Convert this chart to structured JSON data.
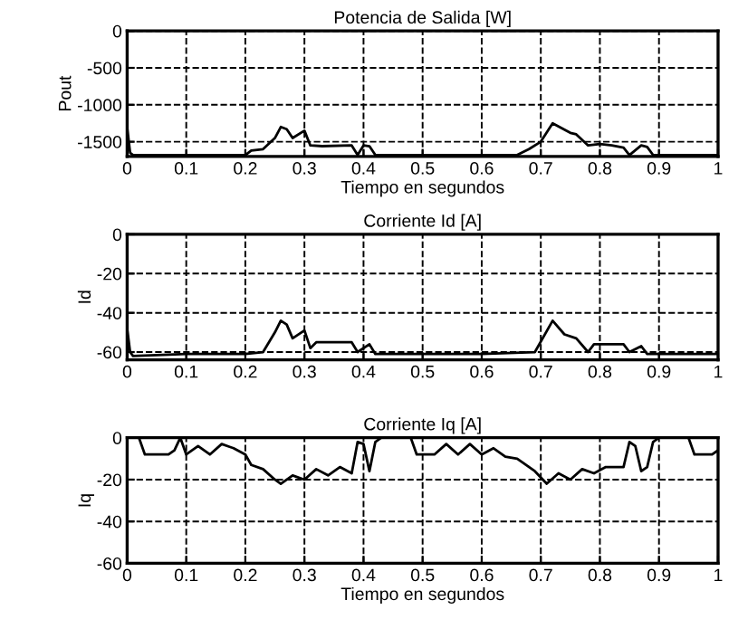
{
  "chart_data": [
    {
      "type": "line",
      "title": "Potencia de Salida [W]",
      "xlabel": "Tiempo en segundos",
      "ylabel": "Pout",
      "xlim": [
        0,
        1
      ],
      "ylim": [
        -1700,
        0
      ],
      "xticks": [
        0,
        0.1,
        0.2,
        0.3,
        0.4,
        0.5,
        0.6,
        0.7,
        0.8,
        0.9,
        1
      ],
      "yticks": [
        0,
        -500,
        -1000,
        -1500
      ],
      "grid": true,
      "line_style": "solid",
      "series": [
        {
          "color": "#000000",
          "x": [
            0,
            0.005,
            0.01,
            0.2,
            0.21,
            0.23,
            0.25,
            0.26,
            0.27,
            0.28,
            0.3,
            0.31,
            0.33,
            0.38,
            0.39,
            0.4,
            0.41,
            0.42,
            0.43,
            0.66,
            0.68,
            0.7,
            0.72,
            0.75,
            0.76,
            0.78,
            0.8,
            0.82,
            0.84,
            0.85,
            0.87,
            0.88,
            0.89,
            1
          ],
          "values": [
            -1300,
            -1650,
            -1680,
            -1680,
            -1620,
            -1600,
            -1450,
            -1300,
            -1330,
            -1450,
            -1350,
            -1550,
            -1560,
            -1550,
            -1680,
            -1550,
            -1560,
            -1680,
            -1680,
            -1680,
            -1600,
            -1500,
            -1250,
            -1380,
            -1400,
            -1550,
            -1530,
            -1550,
            -1580,
            -1680,
            -1550,
            -1570,
            -1680,
            -1680
          ]
        }
      ]
    },
    {
      "type": "line",
      "title": "Corriente Id [A]",
      "ylabel": "Id",
      "xlim": [
        0,
        1
      ],
      "ylim": [
        -64,
        0
      ],
      "xticks": [
        0,
        0.1,
        0.2,
        0.3,
        0.4,
        0.5,
        0.6,
        0.7,
        0.8,
        0.9,
        1
      ],
      "yticks": [
        0,
        -20,
        -40,
        -60
      ],
      "grid": true,
      "line_style": "solid",
      "series": [
        {
          "color": "#000000",
          "x": [
            0,
            0.005,
            0.01,
            0.1,
            0.2,
            0.23,
            0.25,
            0.26,
            0.27,
            0.28,
            0.3,
            0.31,
            0.32,
            0.38,
            0.39,
            0.41,
            0.42,
            0.5,
            0.6,
            0.69,
            0.72,
            0.74,
            0.76,
            0.78,
            0.79,
            0.84,
            0.85,
            0.87,
            0.88,
            1
          ],
          "values": [
            -48,
            -60,
            -62,
            -61,
            -61,
            -60,
            -50,
            -44,
            -46,
            -53,
            -49,
            -58,
            -55,
            -55,
            -60,
            -56,
            -61,
            -61,
            -61,
            -60,
            -44,
            -51,
            -53,
            -60,
            -56,
            -56,
            -60,
            -57,
            -61,
            -61
          ]
        }
      ]
    },
    {
      "type": "line",
      "title": "Corriente Iq [A]",
      "xlabel": "Tiempo en segundos",
      "ylabel": "Iq",
      "xlim": [
        0,
        1
      ],
      "ylim": [
        -60,
        0
      ],
      "xticks": [
        0,
        0.1,
        0.2,
        0.3,
        0.4,
        0.5,
        0.6,
        0.7,
        0.8,
        0.9,
        1
      ],
      "yticks": [
        0,
        -20,
        -40,
        -60
      ],
      "grid": true,
      "line_style": "solid",
      "series": [
        {
          "color": "#000000",
          "x": [
            0,
            0.02,
            0.03,
            0.07,
            0.08,
            0.09,
            0.1,
            0.12,
            0.14,
            0.16,
            0.18,
            0.2,
            0.21,
            0.23,
            0.25,
            0.26,
            0.28,
            0.3,
            0.32,
            0.34,
            0.36,
            0.38,
            0.39,
            0.4,
            0.41,
            0.42,
            0.43,
            0.48,
            0.49,
            0.52,
            0.54,
            0.56,
            0.58,
            0.6,
            0.62,
            0.64,
            0.66,
            0.69,
            0.71,
            0.73,
            0.75,
            0.77,
            0.79,
            0.81,
            0.84,
            0.85,
            0.86,
            0.87,
            0.88,
            0.89,
            0.9,
            0.95,
            0.96,
            0.99,
            1
          ],
          "values": [
            0,
            0,
            -8,
            -8,
            -6,
            0,
            -8,
            -4,
            -8,
            -3,
            -5,
            -8,
            -13,
            -15,
            -20,
            -22,
            -18,
            -20,
            -15,
            -18,
            -14,
            -17,
            -2,
            -3,
            -16,
            -2,
            0,
            0,
            -8,
            -8,
            -3,
            -8,
            -3,
            -8,
            -5,
            -9,
            -10,
            -16,
            -22,
            -17,
            -20,
            -15,
            -17,
            -14,
            -14,
            -2,
            -4,
            -16,
            -14,
            -2,
            0,
            0,
            -8,
            -8,
            -6
          ]
        }
      ]
    }
  ]
}
